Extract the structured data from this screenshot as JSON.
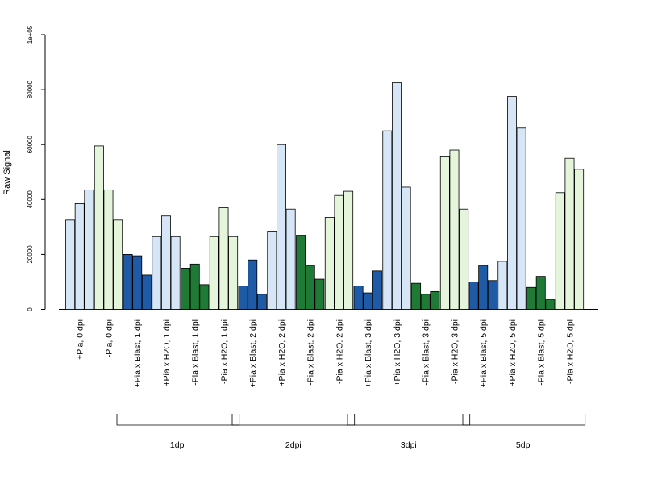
{
  "chart_data": {
    "type": "bar",
    "title": "",
    "ylabel": "Raw Signal",
    "ylim": [
      0,
      100000
    ],
    "yticks": [
      {
        "value": 0,
        "label": "0"
      },
      {
        "value": 20000,
        "label": "20000"
      },
      {
        "value": 40000,
        "label": "40000"
      },
      {
        "value": 60000,
        "label": "60000"
      },
      {
        "value": 80000,
        "label": "80000"
      },
      {
        "value": 100000,
        "label": "1e+05"
      }
    ],
    "colors": {
      "light_blue": "#d6e6f7",
      "light_green": "#e4f5dc",
      "dark_blue": "#1f5aa6",
      "dark_green": "#1e7a35",
      "border": "#000000"
    },
    "categories": [
      {
        "label": "+Pia, 0 dpi",
        "color": "light_blue",
        "values": [
          32500,
          38500,
          43500
        ]
      },
      {
        "label": "-Pia, 0 dpi",
        "color": "light_green",
        "values": [
          59500,
          43500,
          32500
        ]
      },
      {
        "label": "+Pia x Blast, 1 dpi",
        "color": "dark_blue",
        "values": [
          20000,
          19500,
          12500
        ]
      },
      {
        "label": "+Pia x H2O, 1 dpi",
        "color": "light_blue",
        "values": [
          26500,
          34000,
          26500
        ]
      },
      {
        "label": "-Pia x Blast, 1 dpi",
        "color": "dark_green",
        "values": [
          15000,
          16500,
          9000
        ]
      },
      {
        "label": "-Pia x H2O, 1 dpi",
        "color": "light_green",
        "values": [
          26500,
          37000,
          26500
        ]
      },
      {
        "label": "+Pia x Blast, 2 dpi",
        "color": "dark_blue",
        "values": [
          8500,
          18000,
          5500
        ]
      },
      {
        "label": "+Pia x H2O, 2 dpi",
        "color": "light_blue",
        "values": [
          28500,
          60000,
          36500
        ]
      },
      {
        "label": "-Pia x Blast, 2 dpi",
        "color": "dark_green",
        "values": [
          27000,
          16000,
          11000
        ]
      },
      {
        "label": "-Pia x H2O, 2 dpi",
        "color": "light_green",
        "values": [
          33500,
          41500,
          43000
        ]
      },
      {
        "label": "+Pia x Blast, 3 dpi",
        "color": "dark_blue",
        "values": [
          8500,
          6000,
          14000
        ]
      },
      {
        "label": "+Pia x H2O, 3 dpi",
        "color": "light_blue",
        "values": [
          65000,
          82500,
          44500
        ]
      },
      {
        "label": "-Pia x Blast, 3 dpi",
        "color": "dark_green",
        "values": [
          9500,
          5500,
          6500
        ]
      },
      {
        "label": "-Pia x H2O, 3 dpi",
        "color": "light_green",
        "values": [
          55500,
          58000,
          36500
        ]
      },
      {
        "label": "+Pia x Blast, 5 dpi",
        "color": "dark_blue",
        "values": [
          10000,
          16000,
          10500
        ]
      },
      {
        "label": "+Pia x H2O, 5 dpi",
        "color": "light_blue",
        "values": [
          17500,
          77500,
          66000
        ]
      },
      {
        "label": "-Pia x Blast, 5 dpi",
        "color": "dark_green",
        "values": [
          8000,
          12000,
          3500
        ]
      },
      {
        "label": "-Pia x H2O, 5 dpi",
        "color": "light_green",
        "values": [
          42500,
          55000,
          51000
        ]
      }
    ],
    "groups": [
      {
        "label": "1dpi",
        "from": 2,
        "to": 5
      },
      {
        "label": "2dpi",
        "from": 6,
        "to": 9
      },
      {
        "label": "3dpi",
        "from": 10,
        "to": 13
      },
      {
        "label": "5dpi",
        "from": 14,
        "to": 17
      }
    ]
  }
}
